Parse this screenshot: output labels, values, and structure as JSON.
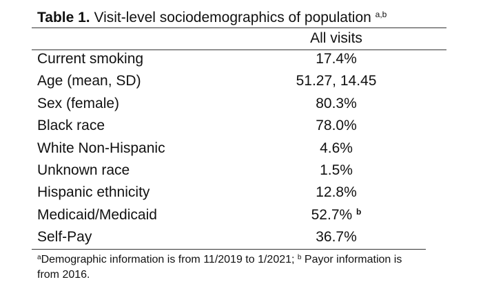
{
  "title": {
    "label": "Table 1.",
    "text": " Visit-level sociodemographics of population",
    "sup": "a,b"
  },
  "column_header": "All visits",
  "rows": [
    {
      "label": "Current smoking",
      "value": "17.4%",
      "sup": ""
    },
    {
      "label": "Age (mean, SD)",
      "value": "51.27, 14.45",
      "sup": ""
    },
    {
      "label": "Sex (female)",
      "value": "80.3%",
      "sup": ""
    },
    {
      "label": "Black race",
      "value": "78.0%",
      "sup": ""
    },
    {
      "label": "White Non-Hispanic",
      "value": "4.6%",
      "sup": ""
    },
    {
      "label": "Unknown race",
      "value": "1.5%",
      "sup": ""
    },
    {
      "label": "Hispanic ethnicity",
      "value": "12.8%",
      "sup": ""
    },
    {
      "label": "Medicaid/Medicaid",
      "value": "52.7%",
      "sup": "b"
    },
    {
      "label": "Self-Pay",
      "value": "36.7%",
      "sup": ""
    }
  ],
  "footnote": {
    "a_mark": "a",
    "a_text": "Demographic information is from 11/2019 to 1/2021; ",
    "b_mark": "b",
    "b_text": " Payor information is from 2016."
  }
}
